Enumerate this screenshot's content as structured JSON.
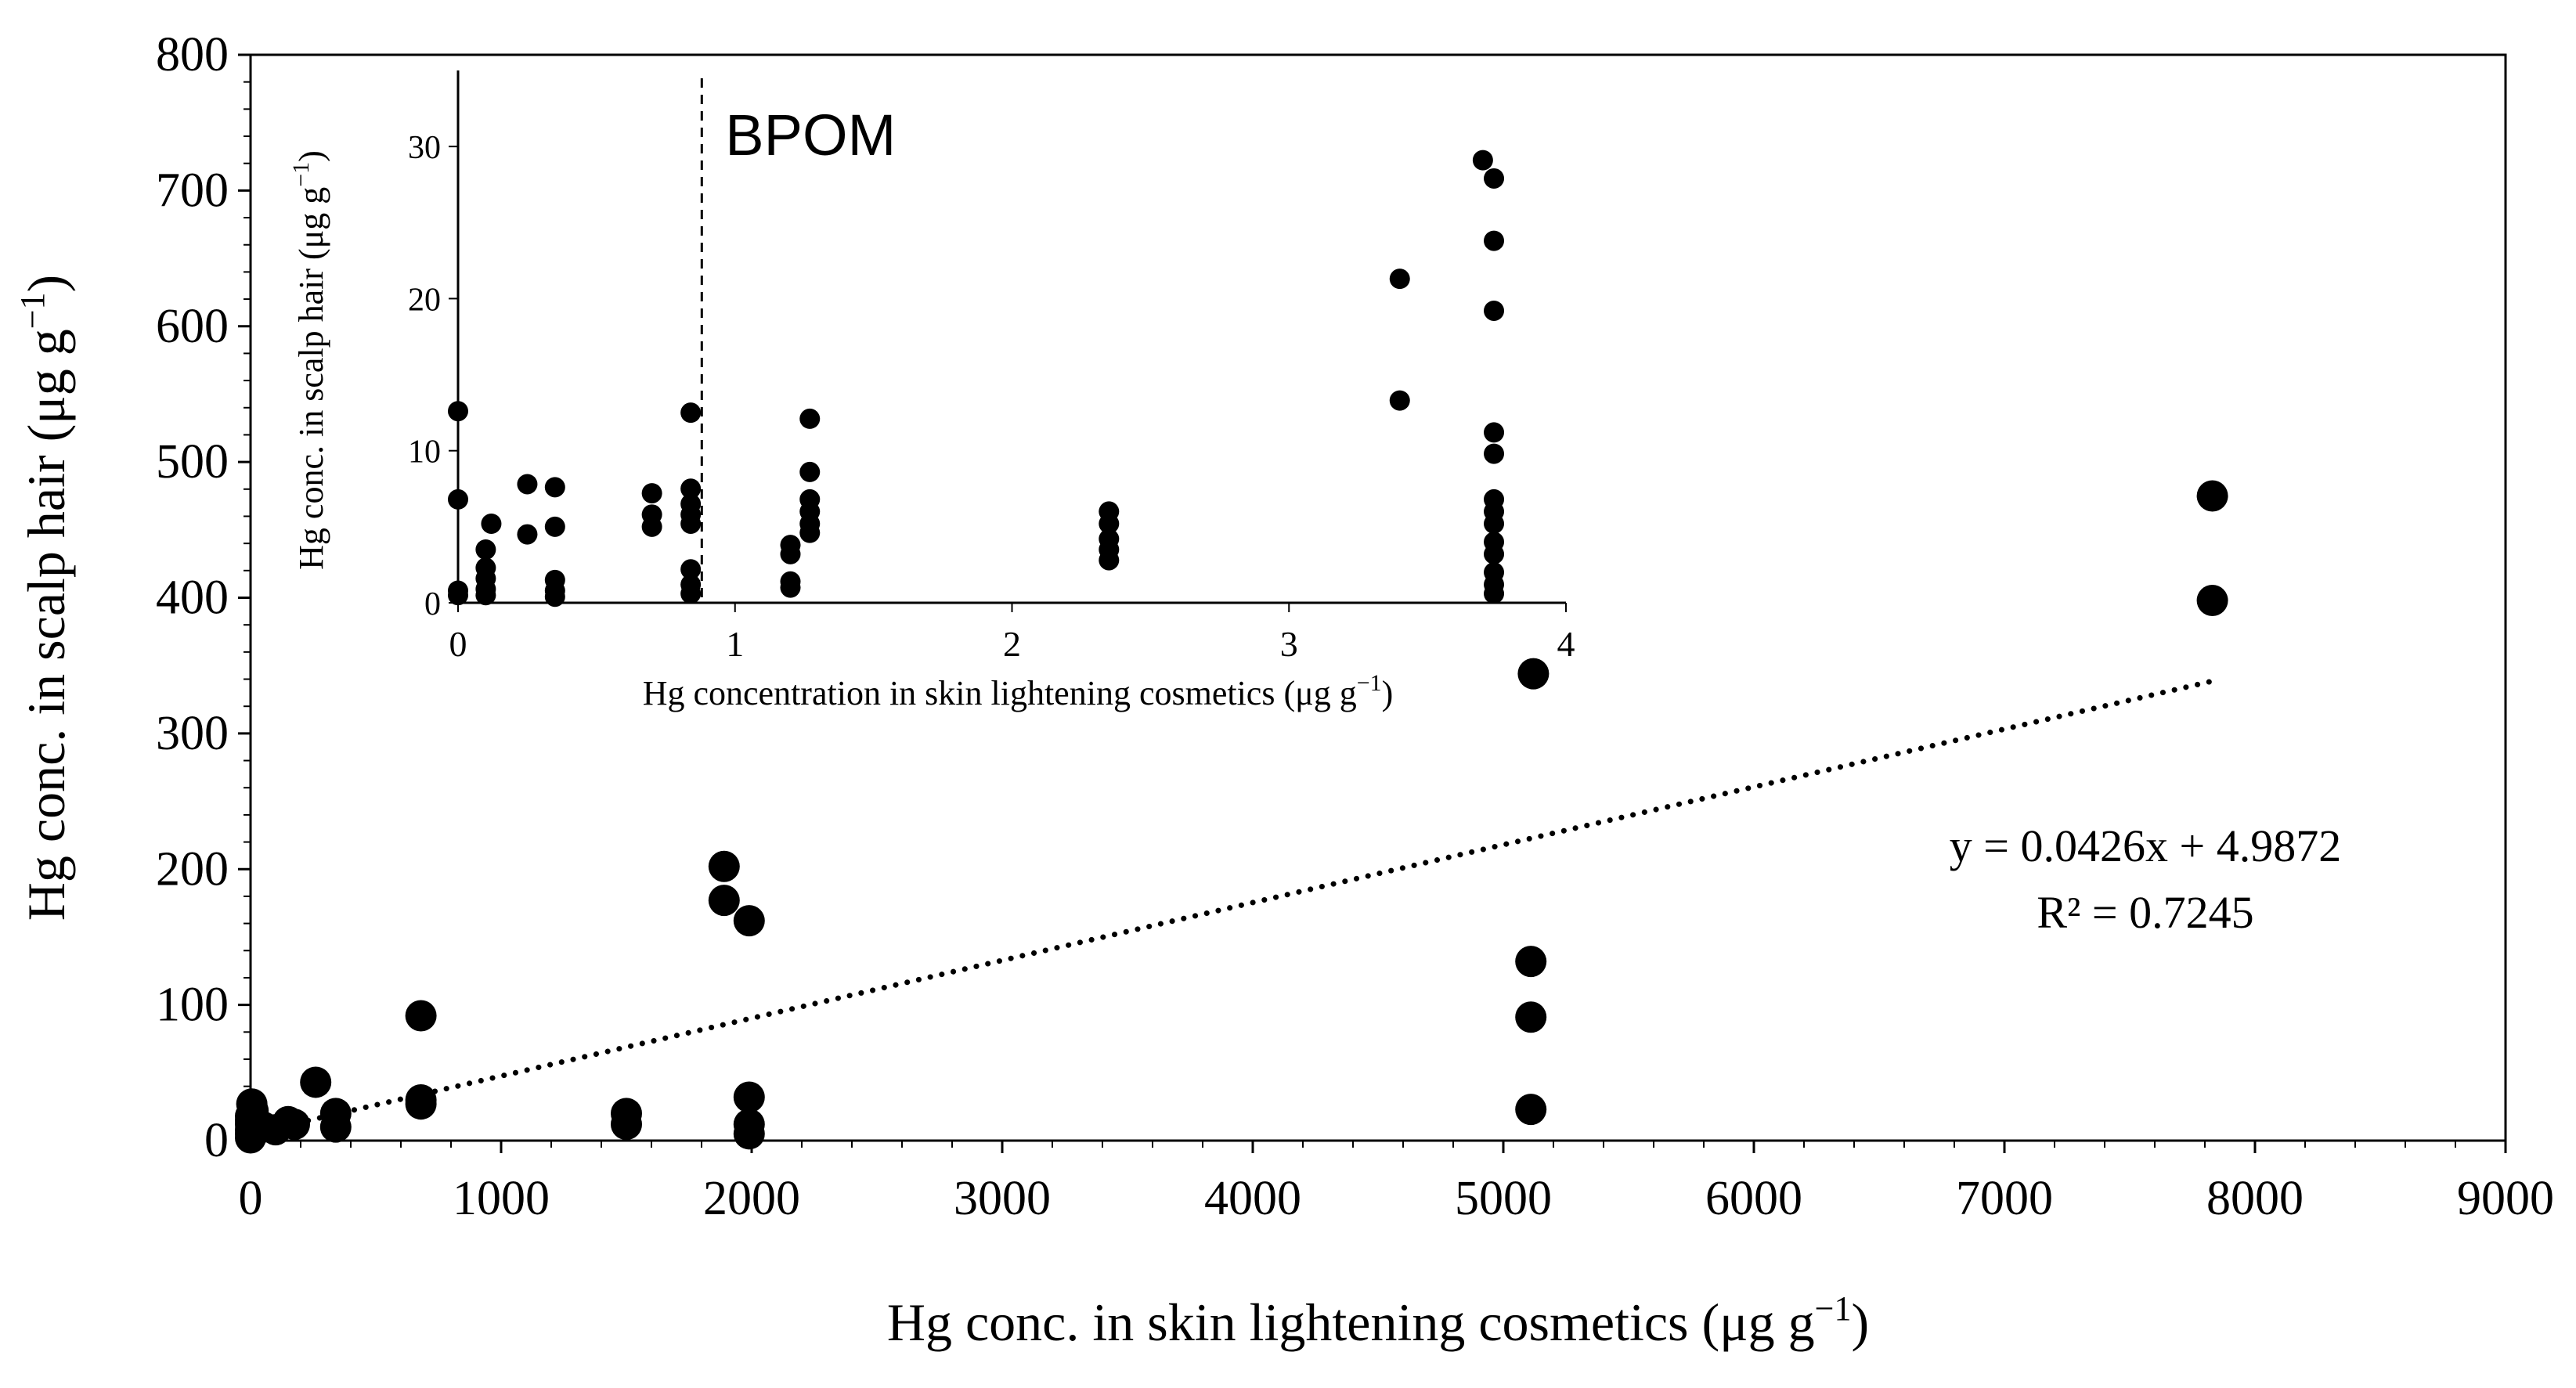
{
  "chart_data": [
    {
      "type": "scatter",
      "name": "main",
      "xlabel_main": "Hg conc. in skin lightening cosmetics (μg g",
      "xlabel_sup": "−1",
      "xlabel_close": ")",
      "ylabel_main": "Hg conc. in scalp hair (μg g",
      "ylabel_sup": "−1",
      "ylabel_close": ")",
      "xlim": [
        0,
        9000
      ],
      "ylim": [
        0,
        800
      ],
      "xticks": [
        0,
        1000,
        2000,
        3000,
        4000,
        5000,
        6000,
        7000,
        8000,
        9000
      ],
      "yticks": [
        0,
        100,
        200,
        300,
        400,
        500,
        600,
        700,
        800
      ],
      "grid": false,
      "series": [
        {
          "name": "samples",
          "points": [
            [
              0,
              2
            ],
            [
              0,
              5
            ],
            [
              0,
              8
            ],
            [
              0,
              12
            ],
            [
              0,
              15
            ],
            [
              0,
              18
            ],
            [
              5,
              27
            ],
            [
              10,
              22
            ],
            [
              50,
              10
            ],
            [
              100,
              8
            ],
            [
              150,
              14
            ],
            [
              175,
              12
            ],
            [
              260,
              43
            ],
            [
              340,
              10
            ],
            [
              340,
              20
            ],
            [
              680,
              27
            ],
            [
              680,
              30
            ],
            [
              680,
              92
            ],
            [
              1500,
              12
            ],
            [
              1500,
              20
            ],
            [
              1890,
              202
            ],
            [
              1890,
              177
            ],
            [
              1990,
              162
            ],
            [
              1990,
              32
            ],
            [
              1990,
              12
            ],
            [
              1990,
              5
            ],
            [
              5110,
              132
            ],
            [
              5110,
              91
            ],
            [
              5110,
              23
            ],
            [
              5120,
              344
            ],
            [
              7830,
              475
            ],
            [
              7830,
              398
            ]
          ]
        }
      ],
      "trendline": {
        "x_range": [
          0,
          7830
        ],
        "slope": 0.0426,
        "intercept": 4.9872,
        "equation": "y = 0.0426x + 4.9872",
        "r2_label": "R² = 0.7245"
      }
    },
    {
      "type": "scatter",
      "name": "inset",
      "xlabel_main": "Hg concentration in skin lightening cosmetics  (μg g",
      "xlabel_sup": "−1",
      "xlabel_close": ")",
      "ylabel_main": "Hg conc. in scalp hair (μg g",
      "ylabel_sup": "−1",
      "ylabel_close": ")",
      "xlim": [
        0,
        4
      ],
      "ylim": [
        0,
        35
      ],
      "xticks": [
        0,
        1,
        2,
        3,
        4
      ],
      "yticks": [
        0,
        10,
        20,
        30
      ],
      "reference_line": {
        "x": 0.88,
        "label": "BPOM"
      },
      "series": [
        {
          "name": "samples",
          "points": [
            [
              0.0,
              0.5
            ],
            [
              0.0,
              0.8
            ],
            [
              0.0,
              6.8
            ],
            [
              0.0,
              12.6
            ],
            [
              0.1,
              0.5
            ],
            [
              0.1,
              0.9
            ],
            [
              0.1,
              1.6
            ],
            [
              0.1,
              2.3
            ],
            [
              0.1,
              3.5
            ],
            [
              0.12,
              5.2
            ],
            [
              0.25,
              4.5
            ],
            [
              0.25,
              7.8
            ],
            [
              0.35,
              0.4
            ],
            [
              0.35,
              0.8
            ],
            [
              0.35,
              1.5
            ],
            [
              0.35,
              5.0
            ],
            [
              0.35,
              7.6
            ],
            [
              0.7,
              5.0
            ],
            [
              0.7,
              5.8
            ],
            [
              0.7,
              7.2
            ],
            [
              0.84,
              0.6
            ],
            [
              0.84,
              1.2
            ],
            [
              0.84,
              2.2
            ],
            [
              0.84,
              5.2
            ],
            [
              0.84,
              5.8
            ],
            [
              0.84,
              6.5
            ],
            [
              0.84,
              7.5
            ],
            [
              0.84,
              12.5
            ],
            [
              1.2,
              1.0
            ],
            [
              1.2,
              1.4
            ],
            [
              1.2,
              3.2
            ],
            [
              1.2,
              3.8
            ],
            [
              1.27,
              4.6
            ],
            [
              1.27,
              5.2
            ],
            [
              1.27,
              6.0
            ],
            [
              1.27,
              6.8
            ],
            [
              1.27,
              8.6
            ],
            [
              1.27,
              12.1
            ],
            [
              2.35,
              2.8
            ],
            [
              2.35,
              3.5
            ],
            [
              2.35,
              4.2
            ],
            [
              2.35,
              5.2
            ],
            [
              2.35,
              6.0
            ],
            [
              3.4,
              13.3
            ],
            [
              3.4,
              21.3
            ],
            [
              3.7,
              29.1
            ],
            [
              3.74,
              0.6
            ],
            [
              3.74,
              1.2
            ],
            [
              3.74,
              2.0
            ],
            [
              3.74,
              3.2
            ],
            [
              3.74,
              4.0
            ],
            [
              3.74,
              5.2
            ],
            [
              3.74,
              6.0
            ],
            [
              3.74,
              6.8
            ],
            [
              3.74,
              9.8
            ],
            [
              3.74,
              11.2
            ],
            [
              3.74,
              19.2
            ],
            [
              3.74,
              23.8
            ],
            [
              3.74,
              27.9
            ]
          ]
        }
      ]
    }
  ]
}
